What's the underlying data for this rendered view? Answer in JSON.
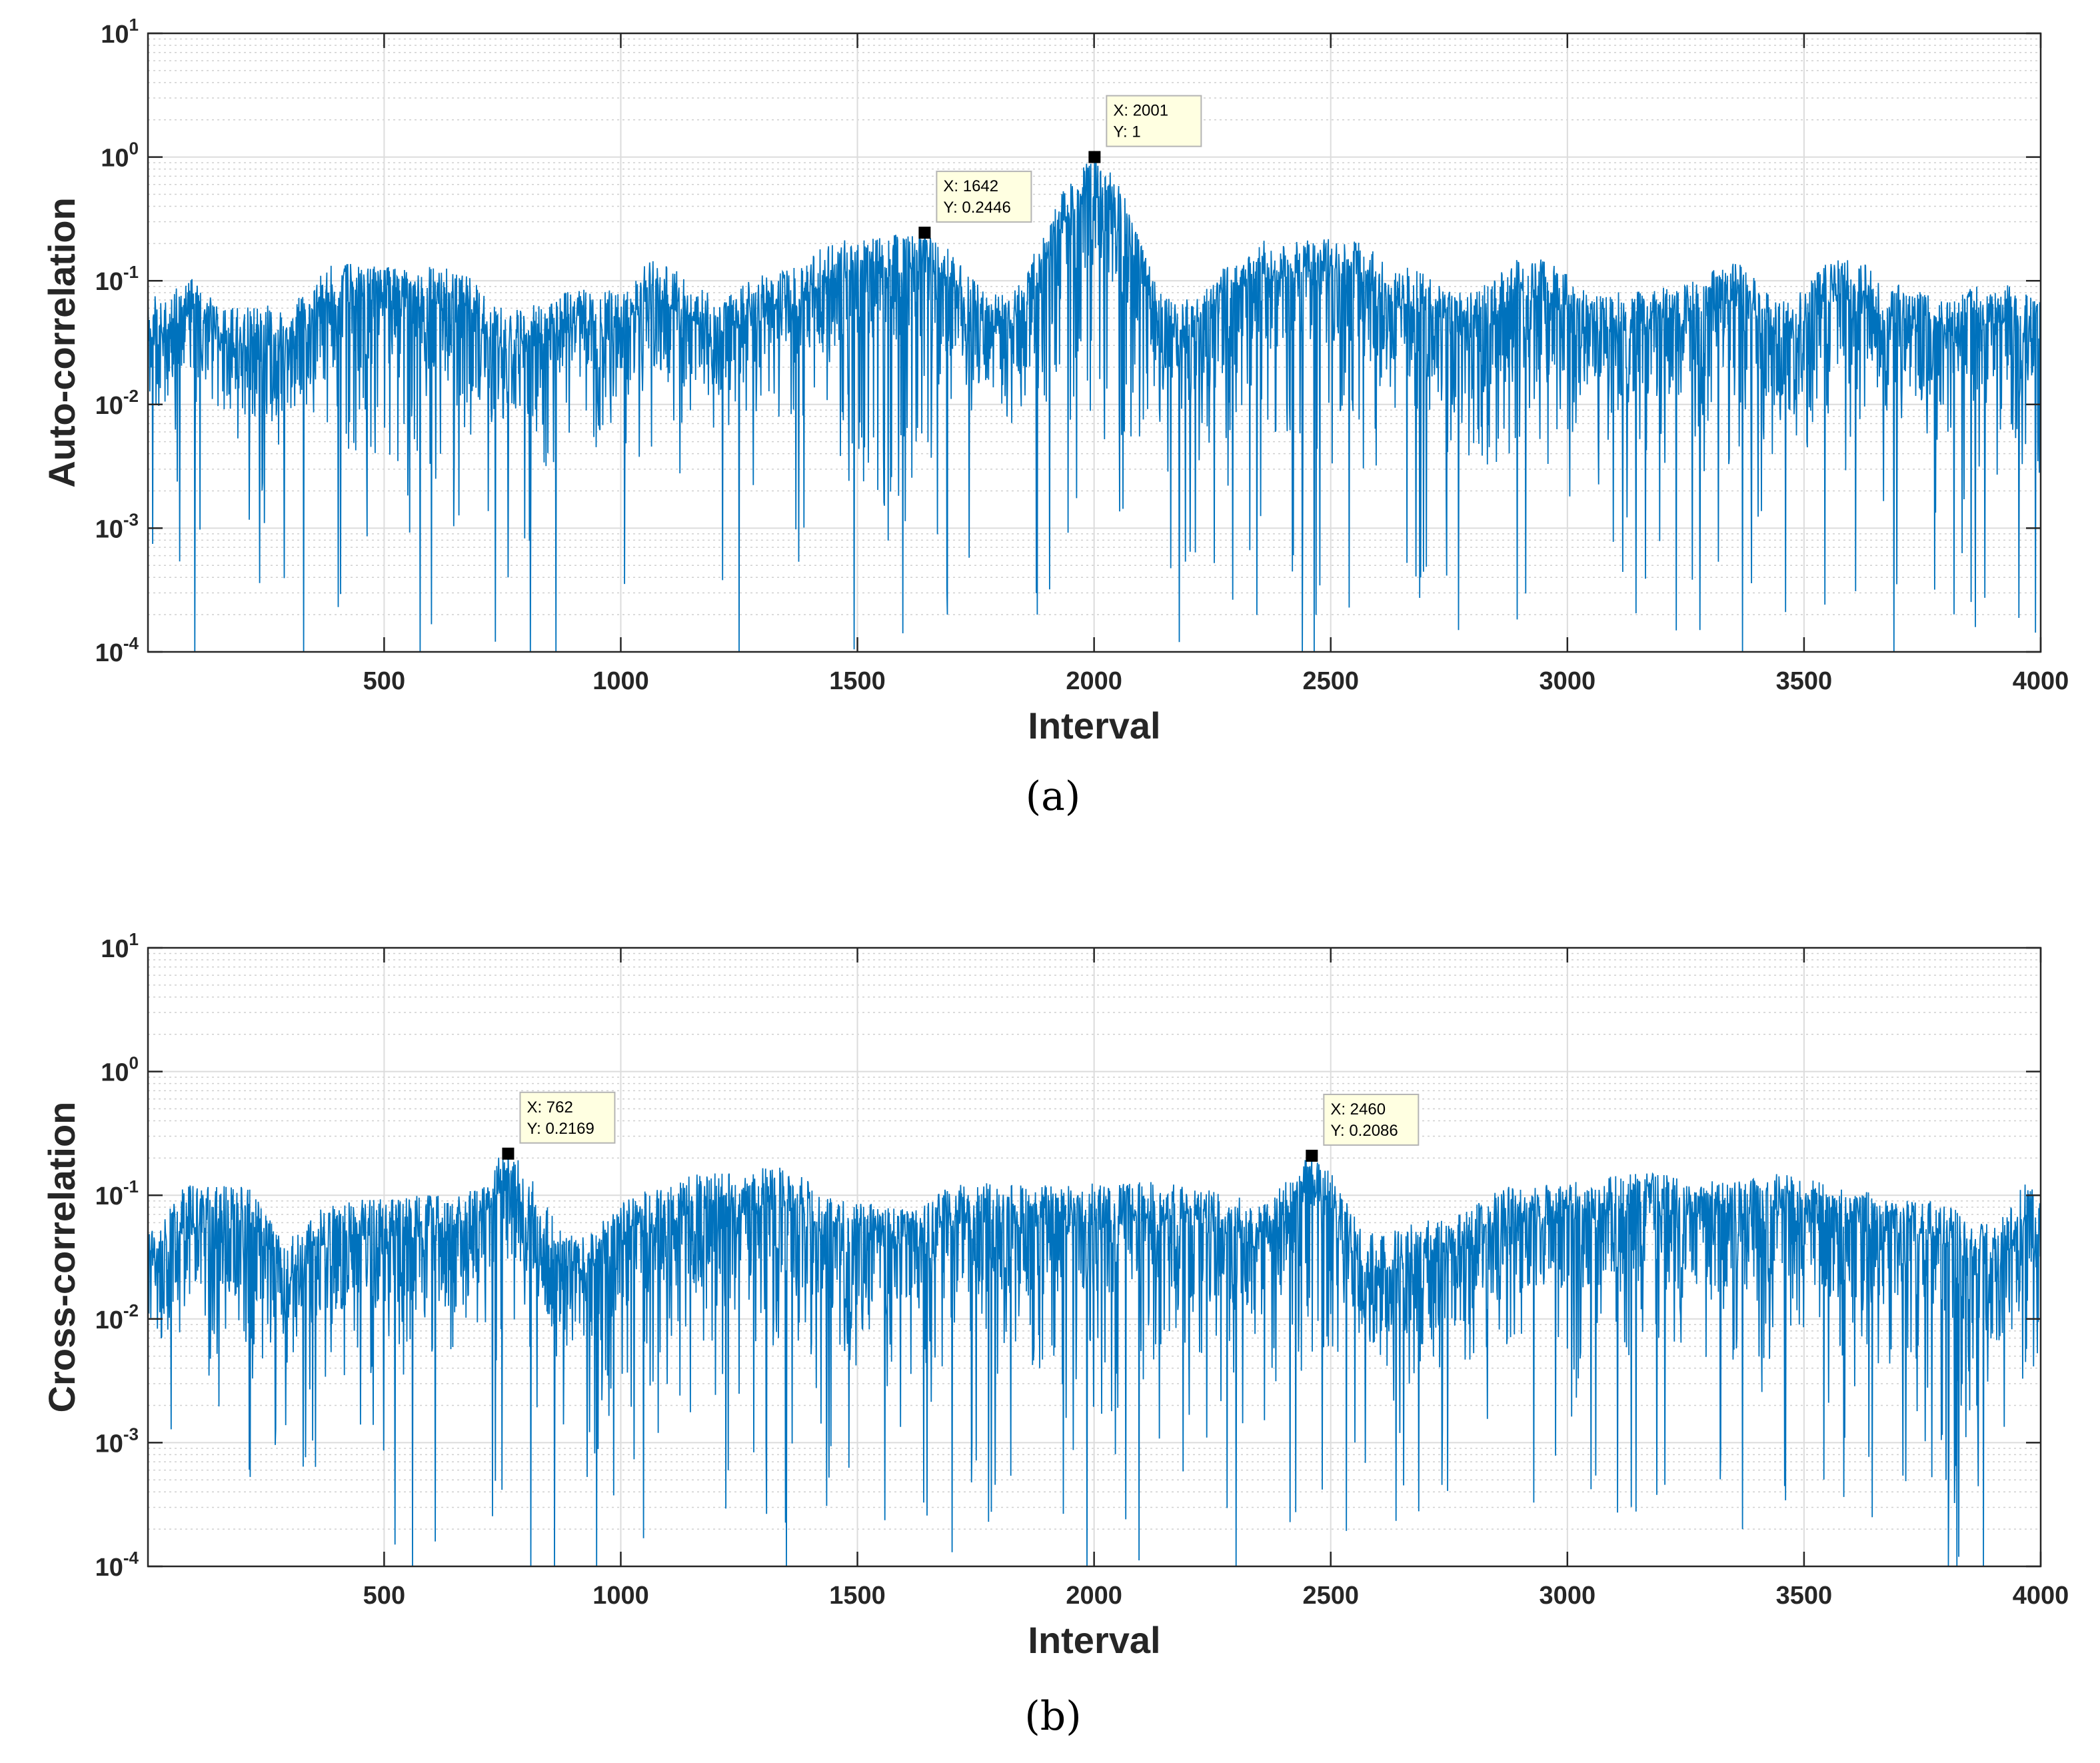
{
  "chart_data": [
    {
      "panel": "a",
      "type": "line",
      "scale": "log-y",
      "caption": "(a)",
      "xlabel": "Interval",
      "ylabel": "Auto-correlation",
      "xlim": [
        1,
        4000
      ],
      "ylim": [
        0.0001,
        10
      ],
      "xticks": [
        500,
        1000,
        1500,
        2000,
        2500,
        3000,
        3500,
        4000
      ],
      "yticks": [
        {
          "base": "10",
          "exp": "-4"
        },
        {
          "base": "10",
          "exp": "-3"
        },
        {
          "base": "10",
          "exp": "-2"
        },
        {
          "base": "10",
          "exp": "-1"
        },
        {
          "base": "10",
          "exp": "0"
        },
        {
          "base": "10",
          "exp": "1"
        }
      ],
      "grid": true,
      "color": "#0072BD",
      "baseline": 0.045,
      "envelope_peaks": [
        [
          10,
          0.075
        ],
        [
          100,
          0.11
        ],
        [
          160,
          0.06
        ],
        [
          280,
          0.065
        ],
        [
          410,
          0.14
        ],
        [
          490,
          0.13
        ],
        [
          640,
          0.13
        ],
        [
          760,
          0.06
        ],
        [
          830,
          0.065
        ],
        [
          920,
          0.09
        ],
        [
          1000,
          0.085
        ],
        [
          1070,
          0.15
        ],
        [
          1200,
          0.08
        ],
        [
          1340,
          0.12
        ],
        [
          1460,
          0.22
        ],
        [
          1642,
          0.2446
        ],
        [
          1800,
          0.08
        ],
        [
          2001,
          1.0
        ],
        [
          2180,
          0.07
        ],
        [
          2360,
          0.22
        ],
        [
          2540,
          0.22
        ],
        [
          2650,
          0.13
        ],
        [
          2780,
          0.08
        ],
        [
          2920,
          0.16
        ],
        [
          3080,
          0.08
        ],
        [
          3230,
          0.09
        ],
        [
          3350,
          0.14
        ],
        [
          3460,
          0.07
        ],
        [
          3570,
          0.15
        ],
        [
          3800,
          0.075
        ],
        [
          3900,
          0.1
        ],
        [
          4000,
          0.075
        ]
      ],
      "envelope_dips": [
        [
          60,
          0.04
        ],
        [
          130,
          0.07
        ],
        [
          230,
          0.03
        ],
        [
          340,
          0.045
        ],
        [
          560,
          0.012
        ],
        [
          700,
          0.02
        ],
        [
          850,
          0.01
        ],
        [
          1000,
          0.04
        ],
        [
          1270,
          0.04
        ],
        [
          1400,
          0.05
        ],
        [
          1540,
          0.006
        ],
        [
          1730,
          0.04
        ],
        [
          1900,
          0.04
        ],
        [
          2100,
          0.03
        ],
        [
          2240,
          0.03
        ],
        [
          2460,
          0.009
        ],
        [
          2600,
          0.04
        ],
        [
          2800,
          0.02
        ],
        [
          3000,
          0.03
        ],
        [
          3110,
          0.03
        ],
        [
          3230,
          0.02
        ],
        [
          3300,
          0.015
        ],
        [
          3420,
          0.02
        ],
        [
          3700,
          0.04
        ],
        [
          3960,
          0.015
        ]
      ],
      "deep_nulls": [
        [
          100,
          0.0001
        ],
        [
          330,
          0.0001
        ],
        [
          1250,
          0.0001
        ],
        [
          1690,
          0.0002
        ],
        [
          1880,
          0.0002
        ],
        [
          2180,
          0.00012
        ],
        [
          2770,
          0.00015
        ],
        [
          3280,
          0.00015
        ],
        [
          3370,
          0.0001
        ],
        [
          3690,
          0.0001
        ]
      ],
      "datatips": [
        {
          "x": 1642,
          "y": 0.2446,
          "label_x": "X: 1642",
          "label_y": "Y: 0.2446"
        },
        {
          "x": 2001,
          "y": 1.0,
          "label_x": "X: 2001",
          "label_y": "Y: 1"
        }
      ]
    },
    {
      "panel": "b",
      "type": "line",
      "scale": "log-y",
      "caption": "(b)",
      "xlabel": "Interval",
      "ylabel": "Cross-correlation",
      "xlim": [
        1,
        4000
      ],
      "ylim": [
        0.0001,
        10
      ],
      "xticks": [
        500,
        1000,
        1500,
        2000,
        2500,
        3000,
        3500,
        4000
      ],
      "yticks": [
        {
          "base": "10",
          "exp": "-4"
        },
        {
          "base": "10",
          "exp": "-3"
        },
        {
          "base": "10",
          "exp": "-2"
        },
        {
          "base": "10",
          "exp": "-1"
        },
        {
          "base": "10",
          "exp": "0"
        },
        {
          "base": "10",
          "exp": "1"
        }
      ],
      "grid": true,
      "color": "#0072BD",
      "baseline": 0.04,
      "envelope_peaks": [
        [
          10,
          0.06
        ],
        [
          90,
          0.12
        ],
        [
          200,
          0.12
        ],
        [
          300,
          0.05
        ],
        [
          400,
          0.09
        ],
        [
          560,
          0.1
        ],
        [
          660,
          0.1
        ],
        [
          762,
          0.2169
        ],
        [
          900,
          0.05
        ],
        [
          1060,
          0.11
        ],
        [
          1150,
          0.15
        ],
        [
          1330,
          0.17
        ],
        [
          1480,
          0.09
        ],
        [
          1620,
          0.08
        ],
        [
          1720,
          0.13
        ],
        [
          1880,
          0.12
        ],
        [
          2100,
          0.13
        ],
        [
          2280,
          0.11
        ],
        [
          2340,
          0.08
        ],
        [
          2460,
          0.2086
        ],
        [
          2590,
          0.05
        ],
        [
          2760,
          0.07
        ],
        [
          2880,
          0.12
        ],
        [
          3040,
          0.14
        ],
        [
          3180,
          0.15
        ],
        [
          3320,
          0.13
        ],
        [
          3460,
          0.15
        ],
        [
          3600,
          0.11
        ],
        [
          3760,
          0.09
        ],
        [
          3900,
          0.06
        ],
        [
          3980,
          0.13
        ],
        [
          4000,
          0.09
        ]
      ],
      "envelope_dips": [
        [
          40,
          0.03
        ],
        [
          150,
          0.02
        ],
        [
          250,
          0.02
        ],
        [
          350,
          0.03
        ],
        [
          460,
          0.03
        ],
        [
          560,
          0.02
        ],
        [
          710,
          0.04
        ],
        [
          830,
          0.03
        ],
        [
          1000,
          0.008
        ],
        [
          1130,
          0.04
        ],
        [
          1240,
          0.04
        ],
        [
          1400,
          0.03
        ],
        [
          1560,
          0.02
        ],
        [
          1680,
          0.02
        ],
        [
          1800,
          0.03
        ],
        [
          2000,
          0.01
        ],
        [
          2200,
          0.03
        ],
        [
          2400,
          0.03
        ],
        [
          2540,
          0.02
        ],
        [
          2650,
          0.02
        ],
        [
          2820,
          0.03
        ],
        [
          2960,
          0.03
        ],
        [
          3100,
          0.03
        ],
        [
          3260,
          0.03
        ],
        [
          3390,
          0.02
        ],
        [
          3530,
          0.03
        ],
        [
          3680,
          0.02
        ],
        [
          3800,
          0.002
        ],
        [
          3850,
          0.006
        ],
        [
          3940,
          0.02
        ]
      ],
      "deep_nulls": [
        [
          560,
          0.0001
        ],
        [
          810,
          0.0001
        ],
        [
          860,
          0.0001
        ],
        [
          1350,
          0.0001
        ],
        [
          2300,
          0.0001
        ],
        [
          3370,
          0.0002
        ],
        [
          3800,
          0.0005
        ]
      ],
      "datatips": [
        {
          "x": 762,
          "y": 0.2169,
          "label_x": "X: 762",
          "label_y": "Y: 0.2169"
        },
        {
          "x": 2460,
          "y": 0.2086,
          "label_x": "X: 2460",
          "label_y": "Y: 0.2086"
        }
      ]
    }
  ]
}
